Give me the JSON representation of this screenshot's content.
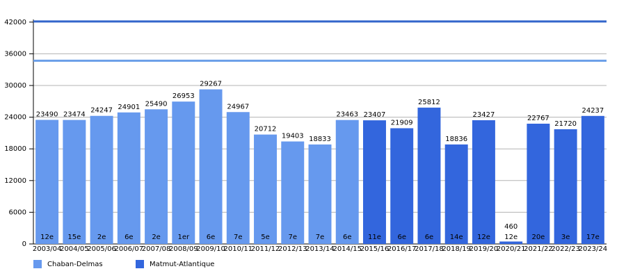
{
  "chart_data": {
    "type": "bar",
    "categories": [
      "2003/04",
      "2004/05",
      "2005/06",
      "2006/07",
      "2007/08",
      "2008/09",
      "2009/10",
      "2010/11",
      "2011/12",
      "2012/13",
      "2013/14",
      "2014/15",
      "2015/16",
      "2016/17",
      "2017/18",
      "2018/19",
      "2019/20",
      "2020/21",
      "2021/22",
      "2022/23",
      "2023/24"
    ],
    "series": [
      {
        "name": "Chaban-Delmas",
        "color": "#6699ee",
        "values": [
          23490,
          23474,
          24247,
          24901,
          25490,
          26953,
          29267,
          24967,
          20712,
          19403,
          18833,
          23463,
          null,
          null,
          null,
          null,
          null,
          null,
          null,
          null,
          null
        ]
      },
      {
        "name": "Matmut-Atlantique",
        "color": "#3366dd",
        "values": [
          null,
          null,
          null,
          null,
          null,
          null,
          null,
          null,
          null,
          null,
          null,
          null,
          23407,
          21909,
          25812,
          18836,
          23427,
          460,
          22767,
          21720,
          24237
        ]
      }
    ],
    "ranks": [
      "12e",
      "15e",
      "2e",
      "6e",
      "2e",
      "1er",
      "6e",
      "7e",
      "5e",
      "7e",
      "7e",
      "6e",
      "11e",
      "6e",
      "6e",
      "14e",
      "12e",
      "12e",
      "20e",
      "3e",
      "17e"
    ],
    "reference_lines": [
      {
        "value": 42115,
        "color": "#3366cc"
      },
      {
        "value": 34694,
        "color": "#6a9ee8"
      }
    ],
    "ylim": [
      0,
      42500
    ],
    "yticks": [
      0,
      6000,
      12000,
      18000,
      24000,
      30000,
      36000,
      42000
    ],
    "grid": true,
    "legend": "bottom-left"
  }
}
